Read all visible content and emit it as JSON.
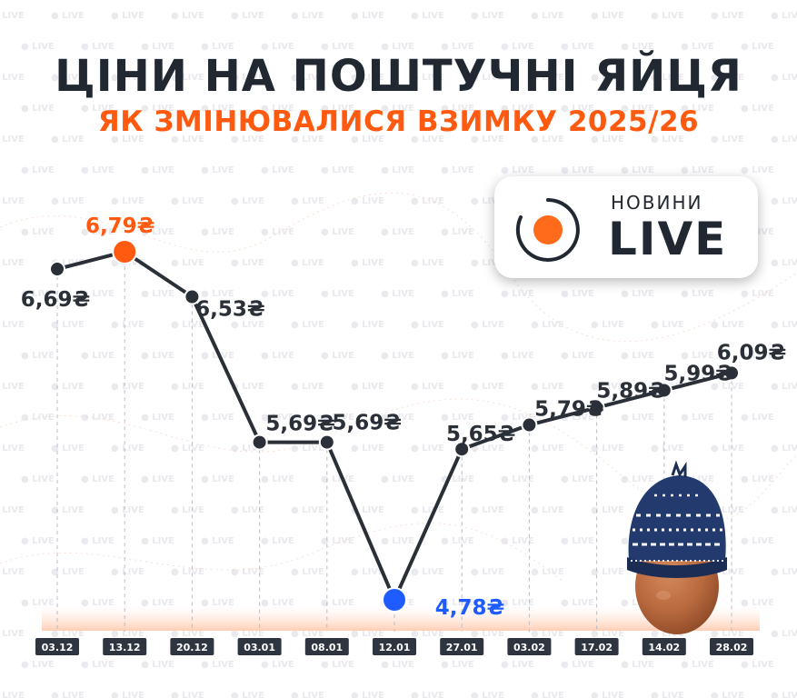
{
  "header": {
    "title": "ЦІНИ НА ПОШТУЧНІ ЯЙЦЯ",
    "subtitle": "ЯК ЗМІНЮВАЛИСЯ ВЗИМКУ 2025/26"
  },
  "logo": {
    "top_text": "НОВИНИ",
    "main_text": "LIVE",
    "watermark_text": "LIVE",
    "accent_color": "#ff6b1a"
  },
  "colors": {
    "title": "#222831",
    "subtitle": "#ff5a10",
    "line": "#2a2f38",
    "max_point": "#ff5a10",
    "min_point": "#1f5cff"
  },
  "chart_data": {
    "type": "line",
    "categories": [
      "03.12",
      "13.12",
      "20.12",
      "03.01",
      "08.01",
      "12.01",
      "27.01",
      "03.02",
      "17.02",
      "14.02",
      "28.02"
    ],
    "values": [
      6.69,
      6.79,
      6.53,
      5.69,
      5.69,
      4.78,
      5.65,
      5.79,
      5.89,
      5.99,
      6.09
    ],
    "value_labels": [
      "6,69₴",
      "6,79₴",
      "6,53₴",
      "5,69₴",
      "5,69₴",
      "4,78₴",
      "5,65₴",
      "5,79₴",
      "5,89₴",
      "5,99₴",
      "6,09₴"
    ],
    "highlight": {
      "max_index": 1,
      "min_index": 5
    },
    "title": "ЦІНИ НА ПОШТУЧНІ ЯЙЦЯ",
    "subtitle": "ЯК ЗМІНЮВАЛИСЯ ВЗИМКУ 2025/26",
    "xlabel": "",
    "ylabel": "",
    "grid": true,
    "legend": "none"
  }
}
